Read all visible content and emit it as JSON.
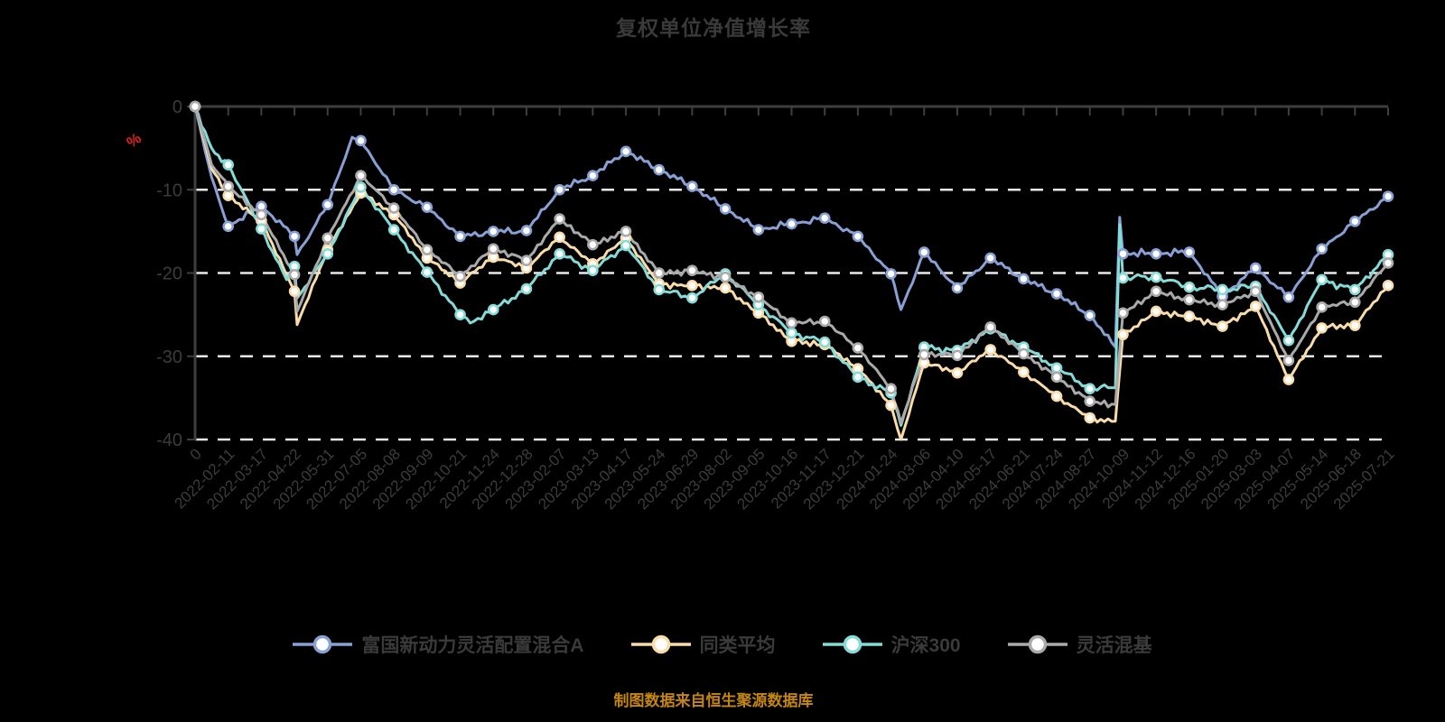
{
  "chart_data": {
    "type": "line",
    "title": "复权单位净值增长率",
    "y_unit": "%",
    "source_note": "制图数据来自恒生聚源数据库",
    "ylim": [
      -40,
      0
    ],
    "y_ticks": [
      0,
      -10,
      -20,
      -30,
      -40
    ],
    "grid": "horizontal-dashed",
    "legend_position": "bottom",
    "categories": [
      "0",
      "2022-02-11",
      "2022-03-17",
      "2022-04-22",
      "2022-05-31",
      "2022-07-05",
      "2022-08-08",
      "2022-09-09",
      "2022-10-21",
      "2022-11-24",
      "2022-12-28",
      "2023-02-07",
      "2023-03-13",
      "2023-04-17",
      "2023-05-24",
      "2023-06-29",
      "2023-08-02",
      "2023-09-05",
      "2023-10-16",
      "2023-11-17",
      "2023-12-21",
      "2024-01-24",
      "2024-03-06",
      "2024-04-10",
      "2024-05-17",
      "2024-06-21",
      "2024-07-24",
      "2024-08-27",
      "2024-10-09",
      "2024-11-12",
      "2024-12-16",
      "2025-01-20",
      "2025-03-03",
      "2025-04-07",
      "2025-05-14",
      "2025-06-18",
      "2025-07-21"
    ],
    "series": [
      {
        "key": "fund",
        "name": "富国新动力灵活配置混合A",
        "color": "#88a0d4",
        "values": [
          0,
          -14.4,
          -12.0,
          -15.6,
          -11.8,
          -4.1,
          -10.0,
          -12.1,
          -15.6,
          -15.0,
          -14.9,
          -10.0,
          -8.3,
          -5.4,
          -7.6,
          -9.6,
          -12.3,
          -14.8,
          -14.1,
          -13.4,
          -15.6,
          -20.1,
          -17.5,
          -21.8,
          -18.2,
          -20.7,
          -22.5,
          -25.1,
          -17.7,
          -17.7,
          -17.5,
          -22.8,
          -19.4,
          -22.9,
          -17.1,
          -13.8,
          -10.8
        ],
        "extra_points": [
          [
            0.5,
            -8.5
          ],
          [
            3.08,
            -17.8
          ],
          [
            4.74,
            -3.7
          ],
          [
            21.3,
            -24.4
          ],
          [
            27.77,
            -28.9
          ],
          [
            27.9,
            -13.3
          ]
        ]
      },
      {
        "key": "peer-average",
        "name": "同类平均",
        "color": "#f8dcaa",
        "values": [
          0,
          -10.7,
          -13.7,
          -22.2,
          -17.2,
          -10.4,
          -13.0,
          -18.2,
          -21.2,
          -18.1,
          -19.4,
          -15.7,
          -18.9,
          -15.8,
          -21.3,
          -21.5,
          -21.8,
          -24.8,
          -28.2,
          -28.6,
          -31.5,
          -35.9,
          -30.8,
          -32.0,
          -29.2,
          -31.9,
          -34.8,
          -37.4,
          -27.4,
          -24.6,
          -25.2,
          -26.4,
          -24.0,
          -32.8,
          -26.6,
          -26.3,
          -21.5
        ],
        "extra_points": [
          [
            0.5,
            -7.5
          ],
          [
            3.08,
            -26.2
          ],
          [
            21.3,
            -40.0
          ],
          [
            27.77,
            -37.8
          ]
        ]
      },
      {
        "key": "csi300",
        "name": "沪深300",
        "color": "#84dbd8",
        "values": [
          0,
          -7.0,
          -14.7,
          -19.2,
          -17.7,
          -9.7,
          -14.8,
          -19.9,
          -25.0,
          -24.4,
          -21.9,
          -17.7,
          -19.7,
          -16.7,
          -22.0,
          -23.0,
          -20.1,
          -23.8,
          -27.2,
          -28.3,
          -32.5,
          -34.4,
          -28.9,
          -29.3,
          -26.7,
          -28.9,
          -31.4,
          -33.9,
          -20.6,
          -20.5,
          -21.7,
          -22.0,
          -21.6,
          -28.1,
          -20.8,
          -22.0,
          -17.8
        ],
        "extra_points": [
          [
            0.5,
            -5.0
          ],
          [
            2.76,
            -20.8
          ],
          [
            3.08,
            -23.0
          ],
          [
            8.3,
            -26.0
          ],
          [
            21.3,
            -38.3
          ],
          [
            27.77,
            -33.8
          ],
          [
            27.9,
            -14.2
          ]
        ]
      },
      {
        "key": "flexible-mix",
        "name": "灵活混基",
        "color": "#aaaaaa",
        "values": [
          0,
          -9.6,
          -13.0,
          -20.2,
          -15.8,
          -8.3,
          -12.2,
          -17.2,
          -20.4,
          -17.1,
          -18.5,
          -13.5,
          -16.6,
          -15.0,
          -20.0,
          -19.7,
          -20.5,
          -22.9,
          -26.0,
          -25.8,
          -29.0,
          -33.9,
          -29.8,
          -29.9,
          -26.5,
          -29.7,
          -32.5,
          -35.4,
          -24.8,
          -22.2,
          -23.2,
          -23.8,
          -22.2,
          -30.5,
          -24.1,
          -23.5,
          -18.8
        ],
        "extra_points": [
          [
            0.5,
            -7.0
          ],
          [
            3.08,
            -24.6
          ],
          [
            21.3,
            -38.0
          ],
          [
            27.77,
            -35.8
          ]
        ]
      }
    ],
    "colors": {
      "background": "#000000",
      "axis_line": "#3e3e3e",
      "axis_text": "#3c3c3c",
      "gridline": "#eaeaea",
      "title_text": "#3a3a3a",
      "unit_label": "#e02222",
      "source_text": "#c5860f",
      "marker_fill": "#ffffff"
    }
  }
}
